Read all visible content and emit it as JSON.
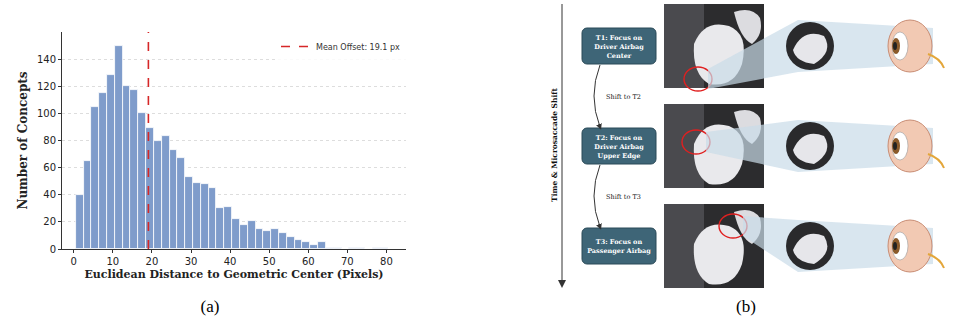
{
  "chart_data": {
    "type": "histogram",
    "caption": "(a)",
    "x_label": "Euclidean Distance to Geometric Center (Pixels)",
    "y_label": "Number of Concepts",
    "bins": [
      0.5,
      2.5,
      4.5,
      6.5,
      8.5,
      10.5,
      12.5,
      14.5,
      16.5,
      18.5,
      20.5,
      22.5,
      24.5,
      26.5,
      28.5,
      30.5,
      32.5,
      34.5,
      36.5,
      38.5,
      40.5,
      42.5,
      44.5,
      46.5,
      48.5,
      50.5,
      52.5,
      54.5,
      56.5,
      58.5,
      60.5,
      62.5,
      64.5,
      66.5,
      68.5,
      70.5,
      72.5,
      74.5,
      76.5,
      78.5,
      80.5
    ],
    "values": [
      40,
      65,
      105,
      115,
      128,
      150,
      120,
      117,
      100,
      89,
      80,
      83,
      73,
      67,
      53,
      49,
      48,
      45,
      30,
      31,
      22,
      18,
      21,
      15,
      13,
      15,
      12,
      9,
      7,
      5,
      3,
      5,
      1,
      1,
      0,
      1,
      1,
      0,
      1,
      1
    ],
    "color": "#7f9ccb",
    "mean": {
      "name": "Mean Offset: 19.1 px",
      "value": 19.1,
      "color": "#d62728",
      "line_style": "dashed"
    },
    "xlim": [
      -3,
      85
    ],
    "xticks": [
      0,
      10,
      20,
      30,
      40,
      50,
      60,
      70,
      80
    ],
    "ylim": [
      0,
      160
    ],
    "yticks": [
      0,
      20,
      40,
      60,
      80,
      100,
      120,
      140
    ],
    "grid": true,
    "legend": "top right"
  },
  "diagram": {
    "caption": "(b)",
    "axis_label": "Time & Microsaccade Shift",
    "steps": [
      {
        "label": "T1: Focus on Driver Airbag Center"
      },
      {
        "label": "T2: Focus on Driver Airbag Upper Edge"
      },
      {
        "label": "T3: Focus on Passenger Airbag"
      }
    ],
    "transitions": [
      "Shift to T2",
      "Shift to T3"
    ]
  }
}
